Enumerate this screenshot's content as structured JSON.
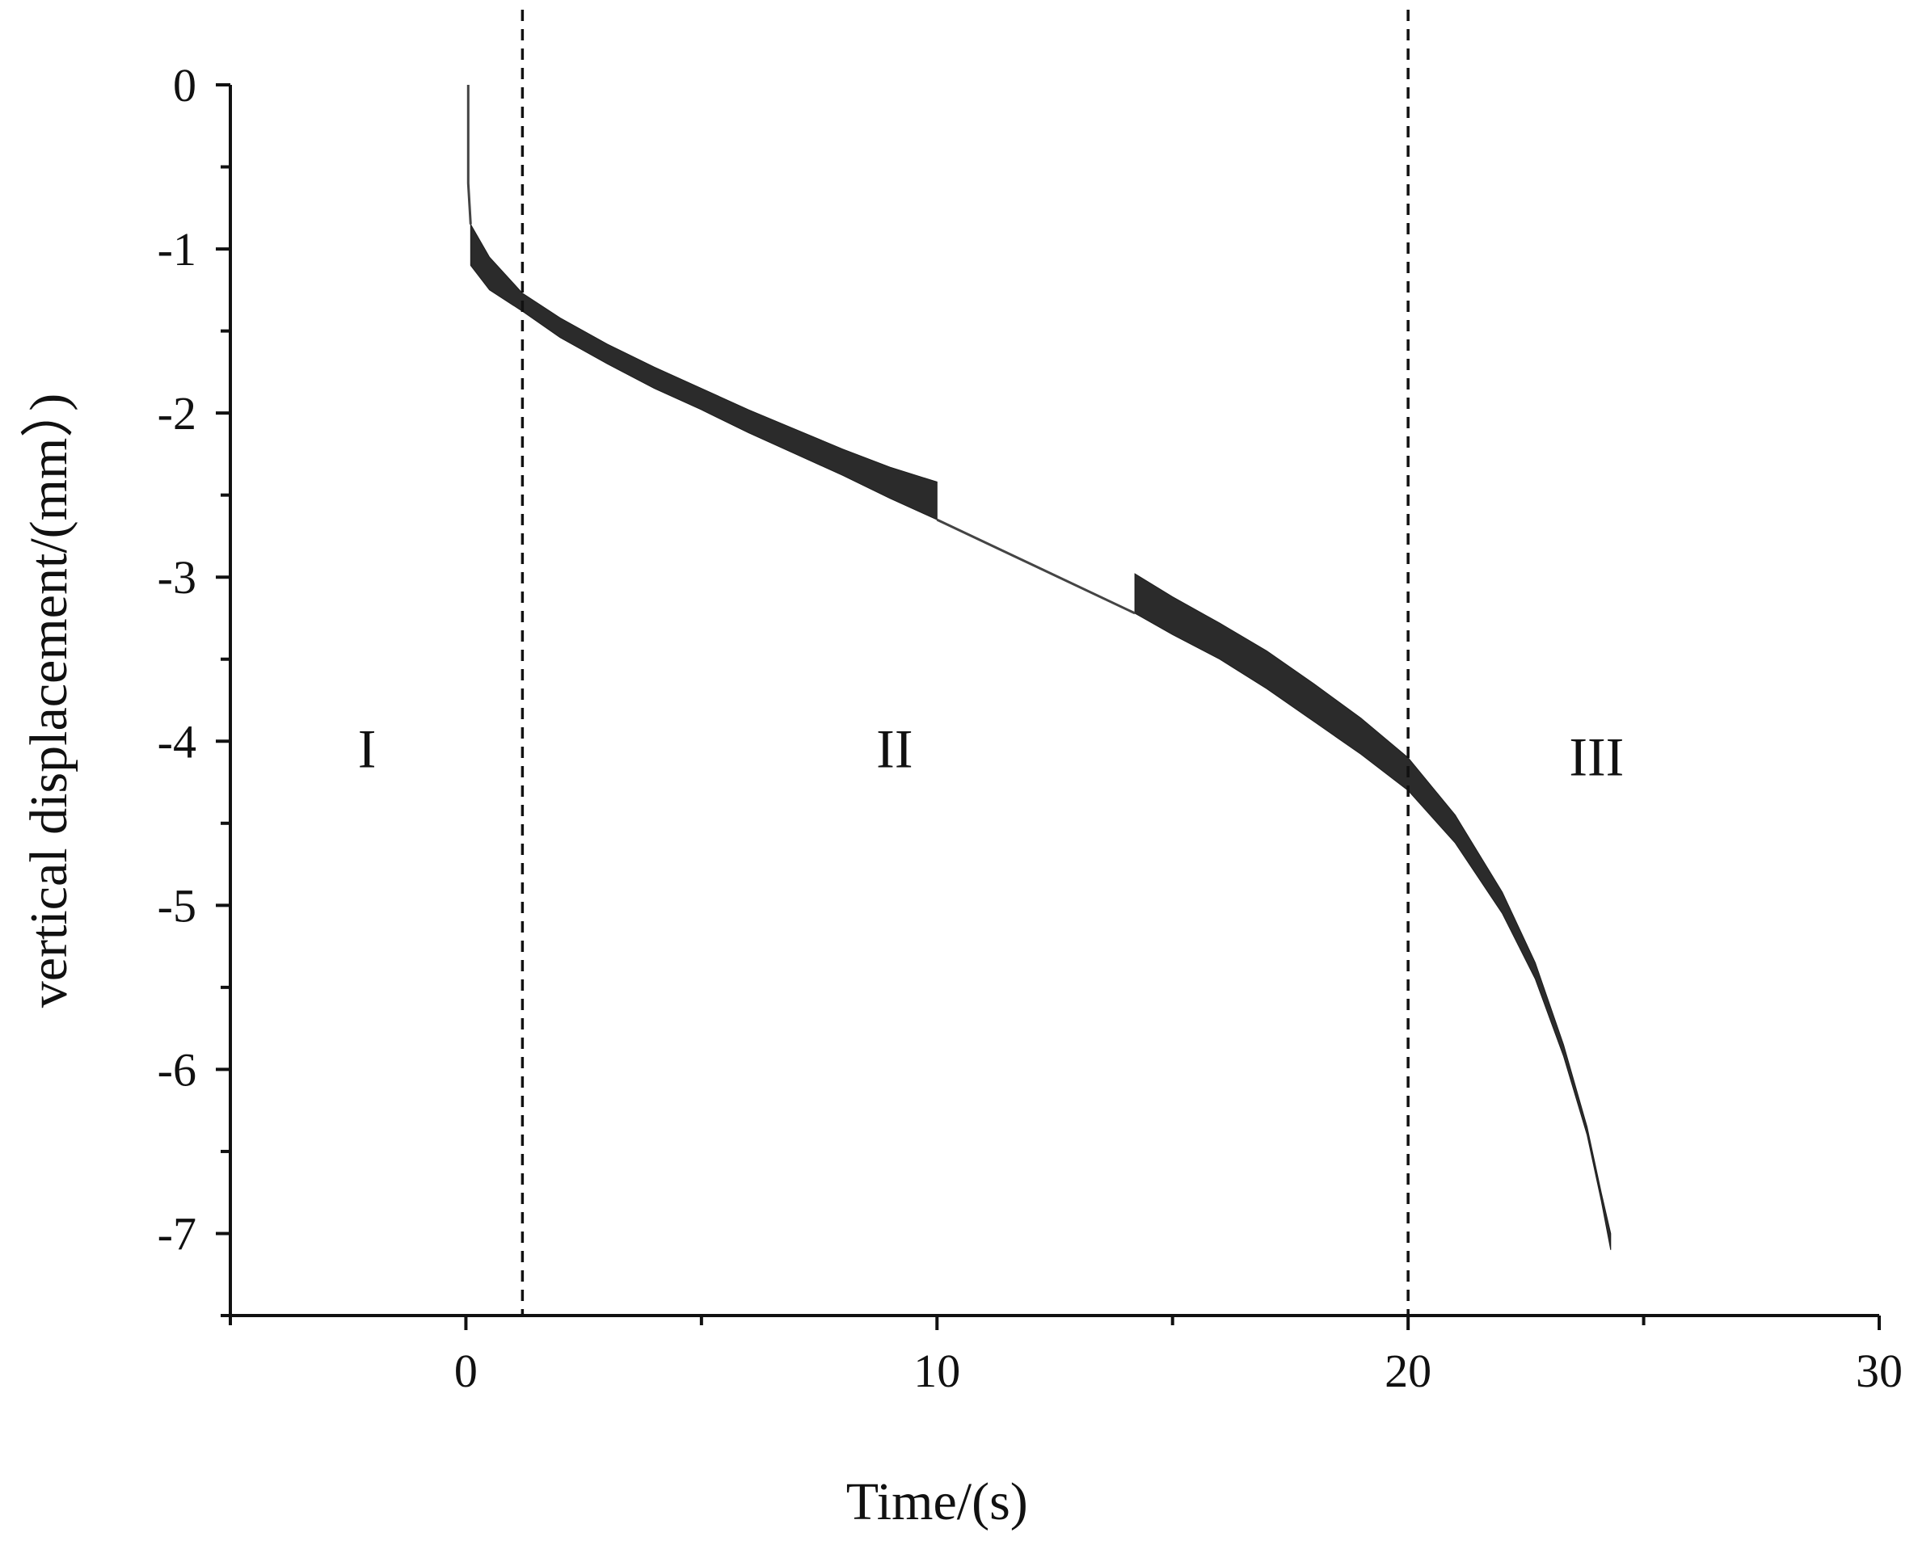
{
  "chart_data": {
    "type": "line",
    "title": "",
    "xlabel": "Time/(s)",
    "ylabel": "vertical displacement/(mm）)",
    "xlim": [
      -5,
      30
    ],
    "ylim": [
      -7.5,
      0
    ],
    "xticks": [
      0,
      10,
      20,
      30
    ],
    "yticks": [
      0,
      -1,
      -2,
      -3,
      -4,
      -5,
      -6,
      -7
    ],
    "grid": false,
    "legend": "none",
    "dividers_x": [
      1.2,
      20
    ],
    "stage_labels": [
      {
        "text": "I",
        "x": -2.1,
        "y": -4.05
      },
      {
        "text": "II",
        "x": 9.1,
        "y": -4.05
      },
      {
        "text": "III",
        "x": 24.0,
        "y": -4.1
      }
    ],
    "series": [
      {
        "style": "oscillating-band",
        "x": [
          0.1,
          0.5,
          1.2,
          2,
          3,
          4,
          5,
          6,
          7,
          8,
          9,
          10
        ],
        "upper": [
          -0.85,
          -1.05,
          -1.27,
          -1.42,
          -1.58,
          -1.72,
          -1.85,
          -1.98,
          -2.1,
          -2.22,
          -2.33,
          -2.42
        ],
        "lower": [
          -1.1,
          -1.25,
          -1.38,
          -1.54,
          -1.7,
          -1.85,
          -1.98,
          -2.12,
          -2.25,
          -2.38,
          -2.52,
          -2.65
        ]
      },
      {
        "style": "oscillating-band",
        "x": [
          14.2,
          15,
          16,
          17,
          18,
          19,
          20,
          21,
          22,
          22.7,
          23.3,
          23.8,
          24.1,
          24.3
        ],
        "upper": [
          -2.98,
          -3.12,
          -3.28,
          -3.45,
          -3.65,
          -3.86,
          -4.1,
          -4.45,
          -4.92,
          -5.35,
          -5.85,
          -6.35,
          -6.75,
          -7.0
        ],
        "lower": [
          -3.22,
          -3.35,
          -3.5,
          -3.68,
          -3.88,
          -4.08,
          -4.3,
          -4.62,
          -5.05,
          -5.45,
          -5.92,
          -6.4,
          -6.8,
          -7.1
        ]
      },
      {
        "style": "line",
        "x": [
          0.05,
          0.05,
          0.1
        ],
        "y": [
          0,
          -0.6,
          -0.85
        ]
      },
      {
        "style": "line",
        "x": [
          10,
          14.2
        ],
        "y": [
          -2.65,
          -3.22
        ]
      }
    ]
  }
}
